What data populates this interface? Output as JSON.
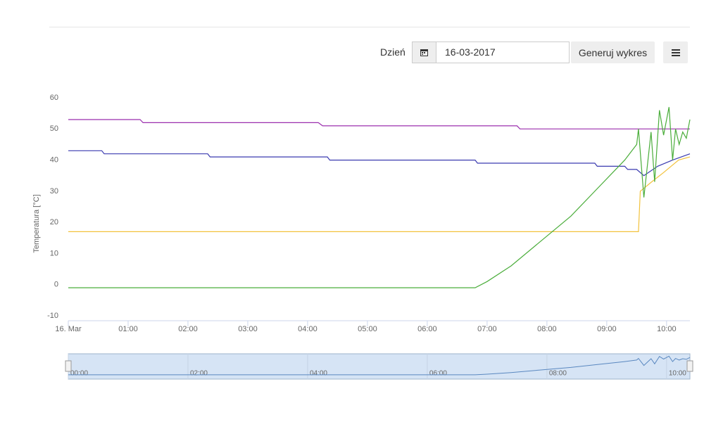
{
  "form": {
    "label": "Dzień",
    "date": "16-03-2017",
    "button": "Generuj wykres"
  },
  "chart_data": {
    "type": "line",
    "y_axis_label": "Temperatura [°C]",
    "xlim": [
      0,
      10.39
    ],
    "ylim": [
      -10,
      60
    ],
    "yticks": [
      -10,
      0,
      10,
      20,
      30,
      40,
      50,
      60
    ],
    "xticks": [
      {
        "value": 0,
        "label": "16. Mar"
      },
      {
        "value": 1,
        "label": "01:00"
      },
      {
        "value": 2,
        "label": "02:00"
      },
      {
        "value": 3,
        "label": "03:00"
      },
      {
        "value": 4,
        "label": "04:00"
      },
      {
        "value": 5,
        "label": "05:00"
      },
      {
        "value": 6,
        "label": "06:00"
      },
      {
        "value": 7,
        "label": "07:00"
      },
      {
        "value": 8,
        "label": "08:00"
      },
      {
        "value": 9,
        "label": "09:00"
      },
      {
        "value": 10,
        "label": "10:00"
      }
    ],
    "grid": false,
    "series": [
      {
        "color": "#9b2fae",
        "x": [
          0,
          1.2,
          1.25,
          4.18,
          4.25,
          7.5,
          7.55,
          10.39
        ],
        "values": [
          53,
          53,
          52,
          52,
          51,
          51,
          50,
          50
        ]
      },
      {
        "color": "#3a3ab0",
        "x": [
          0,
          0.56,
          0.6,
          2.33,
          2.37,
          4.33,
          4.37,
          6.8,
          6.84,
          8.8,
          8.84,
          9.3,
          9.35,
          9.5,
          9.62,
          9.85,
          10.1,
          10.39
        ],
        "values": [
          43,
          43,
          42,
          42,
          41,
          41,
          40,
          40,
          39,
          39,
          38,
          38,
          37,
          37,
          35,
          38,
          40,
          42
        ]
      },
      {
        "color": "#f2c23c",
        "x": [
          0,
          9.53,
          9.56,
          9.75,
          9.95,
          10.2,
          10.39
        ],
        "values": [
          17,
          17,
          30,
          33,
          36,
          40,
          41
        ]
      },
      {
        "color": "#4aad3a",
        "x": [
          0,
          6.8,
          7.0,
          7.4,
          7.9,
          8.4,
          8.9,
          9.3,
          9.5,
          9.53,
          9.62,
          9.74,
          9.8,
          9.88,
          9.95,
          10.04,
          10.1,
          10.15,
          10.21,
          10.27,
          10.33,
          10.39
        ],
        "values": [
          -1,
          -1,
          1,
          6,
          14,
          22,
          32,
          40,
          45,
          50,
          28,
          49,
          33,
          56,
          48,
          57,
          40,
          50,
          45,
          49,
          47,
          53
        ]
      }
    ],
    "navigator": {
      "series": 3,
      "xticks": [
        {
          "value": 0,
          "label": "00:00"
        },
        {
          "value": 2,
          "label": "02:00"
        },
        {
          "value": 4,
          "label": "04:00"
        },
        {
          "value": 6,
          "label": "06:00"
        },
        {
          "value": 8,
          "label": "08:00"
        },
        {
          "value": 10,
          "label": "10:00"
        }
      ]
    }
  }
}
